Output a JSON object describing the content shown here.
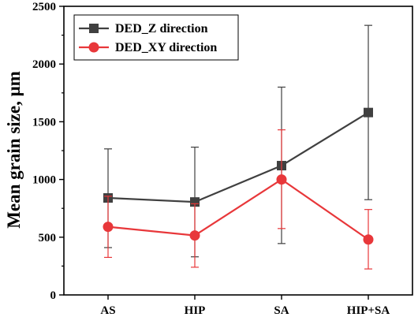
{
  "chart_data": {
    "type": "line",
    "categories": [
      "AS",
      "HIP",
      "SA",
      "HIP+SA"
    ],
    "ylabel": "Mean grain size, μm",
    "xlabel": "",
    "ylim": [
      0,
      2500
    ],
    "yticks": [
      "0",
      "500",
      "1000",
      "1500",
      "2000",
      "2500"
    ],
    "legend_position": "top-left",
    "grid": false,
    "series": [
      {
        "name": "DED_Z direction",
        "color": "#404040",
        "marker": "square",
        "values": [
          840,
          805,
          1120,
          1580
        ],
        "error_low": [
          410,
          330,
          445,
          825
        ],
        "error_high": [
          1265,
          1280,
          1800,
          2335
        ]
      },
      {
        "name": "DED_XY direction",
        "color": "#e8373a",
        "marker": "circle",
        "values": [
          590,
          515,
          1000,
          480
        ],
        "error_low": [
          325,
          240,
          575,
          225
        ],
        "error_high": [
          855,
          790,
          1430,
          740
        ]
      }
    ]
  }
}
